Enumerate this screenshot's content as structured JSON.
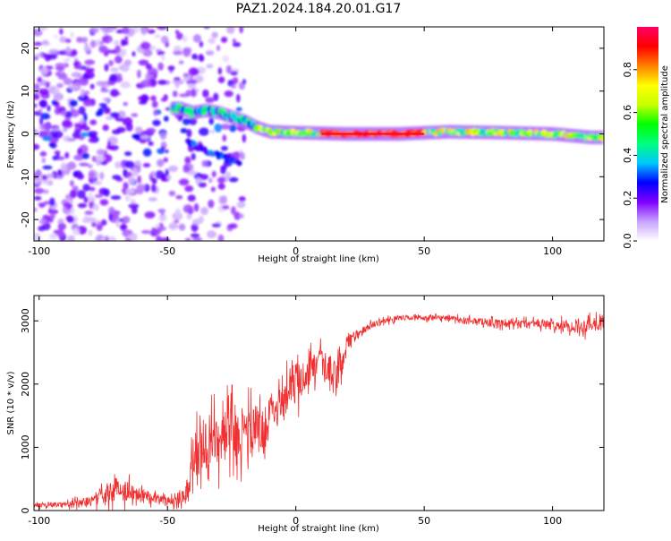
{
  "title": "PAZ1.2024.184.20.01.G17",
  "chart_data": [
    {
      "type": "heatmap",
      "xlabel": "Height of straight line (km)",
      "ylabel": "Frequency (Hz)",
      "xlim": [
        -102,
        120
      ],
      "ylim": [
        -25,
        25
      ],
      "xticks": [
        -100,
        -50,
        0,
        50,
        100
      ],
      "xtick_labels": [
        "-100",
        "-50",
        "0",
        "50",
        "100"
      ],
      "yticks": [
        -20,
        -10,
        0,
        10,
        20
      ],
      "ytick_labels": [
        "-20",
        "-10",
        "0",
        "10",
        "20"
      ],
      "colorbar": {
        "label": "Normalized spectral amplitude",
        "ticks": [
          0.0,
          0.2,
          0.4,
          0.6,
          0.8
        ],
        "tick_labels": [
          "0.0",
          "0.2",
          "0.4",
          "0.6",
          "0.8"
        ],
        "range": [
          0,
          1
        ],
        "colors": [
          "#ffffff",
          "#c9a3ff",
          "#7f00ff",
          "#0000ff",
          "#00c8ff",
          "#00ff7f",
          "#00ff00",
          "#c8ff00",
          "#ffff00",
          "#ff8000",
          "#ff0000",
          "#ff0066"
        ]
      },
      "features": {
        "scatter_region_x": [
          -102,
          -20
        ],
        "scatter_freq_range": [
          -25,
          25
        ],
        "ridge_points": [
          {
            "x": -45,
            "y": 6
          },
          {
            "x": -40,
            "y": 5
          },
          {
            "x": -35,
            "y": 5.5
          },
          {
            "x": -30,
            "y": 5
          },
          {
            "x": -25,
            "y": 4
          },
          {
            "x": -20,
            "y": 3
          },
          {
            "x": -15,
            "y": 1.5
          },
          {
            "x": -10,
            "y": 0.5
          },
          {
            "x": 0,
            "y": 0.3
          },
          {
            "x": 20,
            "y": 0
          },
          {
            "x": 40,
            "y": 0
          },
          {
            "x": 60,
            "y": 0.5
          },
          {
            "x": 80,
            "y": 0.3
          },
          {
            "x": 100,
            "y": 0
          },
          {
            "x": 115,
            "y": -0.8
          }
        ],
        "peak_amplitude_x": [
          10,
          50
        ],
        "peak_amplitude": 0.95
      }
    },
    {
      "type": "line",
      "xlabel": "Height of straight line (km)",
      "ylabel": "SNR (10 * v/v)",
      "xlim": [
        -102,
        120
      ],
      "ylim": [
        0,
        3400
      ],
      "xticks": [
        -100,
        -50,
        0,
        50,
        100
      ],
      "xtick_labels": [
        "-100",
        "-50",
        "0",
        "50",
        "100"
      ],
      "yticks": [
        0,
        1000,
        2000,
        3000
      ],
      "ytick_labels": [
        "0",
        "1000",
        "2000",
        "3000"
      ],
      "series": [
        {
          "color": "#f03030",
          "x": [
            -102,
            -90,
            -80,
            -75,
            -70,
            -65,
            -60,
            -55,
            -50,
            -45,
            -42,
            -40,
            -35,
            -30,
            -25,
            -20,
            -15,
            -12,
            -10,
            -5,
            0,
            5,
            10,
            15,
            18,
            20,
            25,
            30,
            35,
            40,
            45,
            50,
            55,
            60,
            65,
            70,
            75,
            80,
            85,
            90,
            95,
            100,
            105,
            110,
            115,
            120
          ],
          "y": [
            80,
            100,
            150,
            250,
            350,
            300,
            280,
            200,
            150,
            200,
            350,
            900,
            1000,
            1100,
            1300,
            1200,
            1300,
            1200,
            1600,
            1800,
            2000,
            2200,
            2300,
            2100,
            2300,
            2700,
            2800,
            2950,
            3000,
            3050,
            3050,
            3050,
            3050,
            3050,
            3000,
            3000,
            2980,
            2950,
            2950,
            2950,
            2950,
            2930,
            2920,
            2900,
            2950,
            3000
          ],
          "noise_amplitude": [
            60,
            80,
            150,
            300,
            350,
            300,
            250,
            150,
            120,
            200,
            400,
            700,
            800,
            800,
            800,
            800,
            800,
            500,
            500,
            500,
            600,
            500,
            500,
            600,
            400,
            250,
            150,
            100,
            80,
            80,
            80,
            80,
            80,
            80,
            100,
            100,
            120,
            120,
            120,
            150,
            150,
            150,
            160,
            200,
            250,
            250
          ]
        }
      ]
    }
  ]
}
